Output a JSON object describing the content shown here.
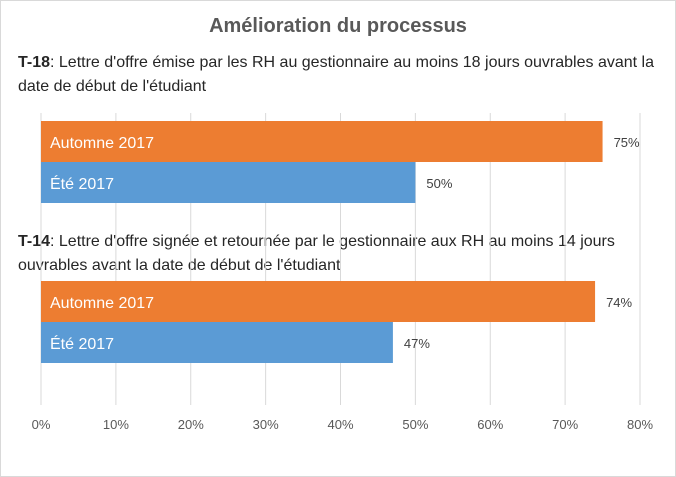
{
  "chart_data": {
    "type": "bar",
    "orientation": "horizontal",
    "title": "Amélioration du processus",
    "xlim": [
      0,
      80
    ],
    "x_ticks": [
      "0%",
      "10%",
      "20%",
      "30%",
      "40%",
      "50%",
      "60%",
      "70%",
      "80%"
    ],
    "grid": true,
    "colors": {
      "Automne 2017": "#ed7d31",
      "Été 2017": "#5b9bd5"
    },
    "groups": [
      {
        "code": "T-18",
        "description": ": Lettre d'offre émise par les RH au gestionnaire au moins 18 jours ouvrables avant la date de début de l'étudiant",
        "bars": [
          {
            "name": "Automne 2017",
            "value": 75,
            "label": "75%"
          },
          {
            "name": "Été 2017",
            "value": 50,
            "label": "50%"
          }
        ]
      },
      {
        "code": "T-14",
        "description": ": Lettre d'offre signée et retournée par le gestionnaire aux RH au moins 14 jours ouvrables avant la date de début de l'étudiant",
        "bars": [
          {
            "name": "Automne 2017",
            "value": 74,
            "label": "74%"
          },
          {
            "name": "Été 2017",
            "value": 47,
            "label": "47%"
          }
        ]
      }
    ]
  }
}
